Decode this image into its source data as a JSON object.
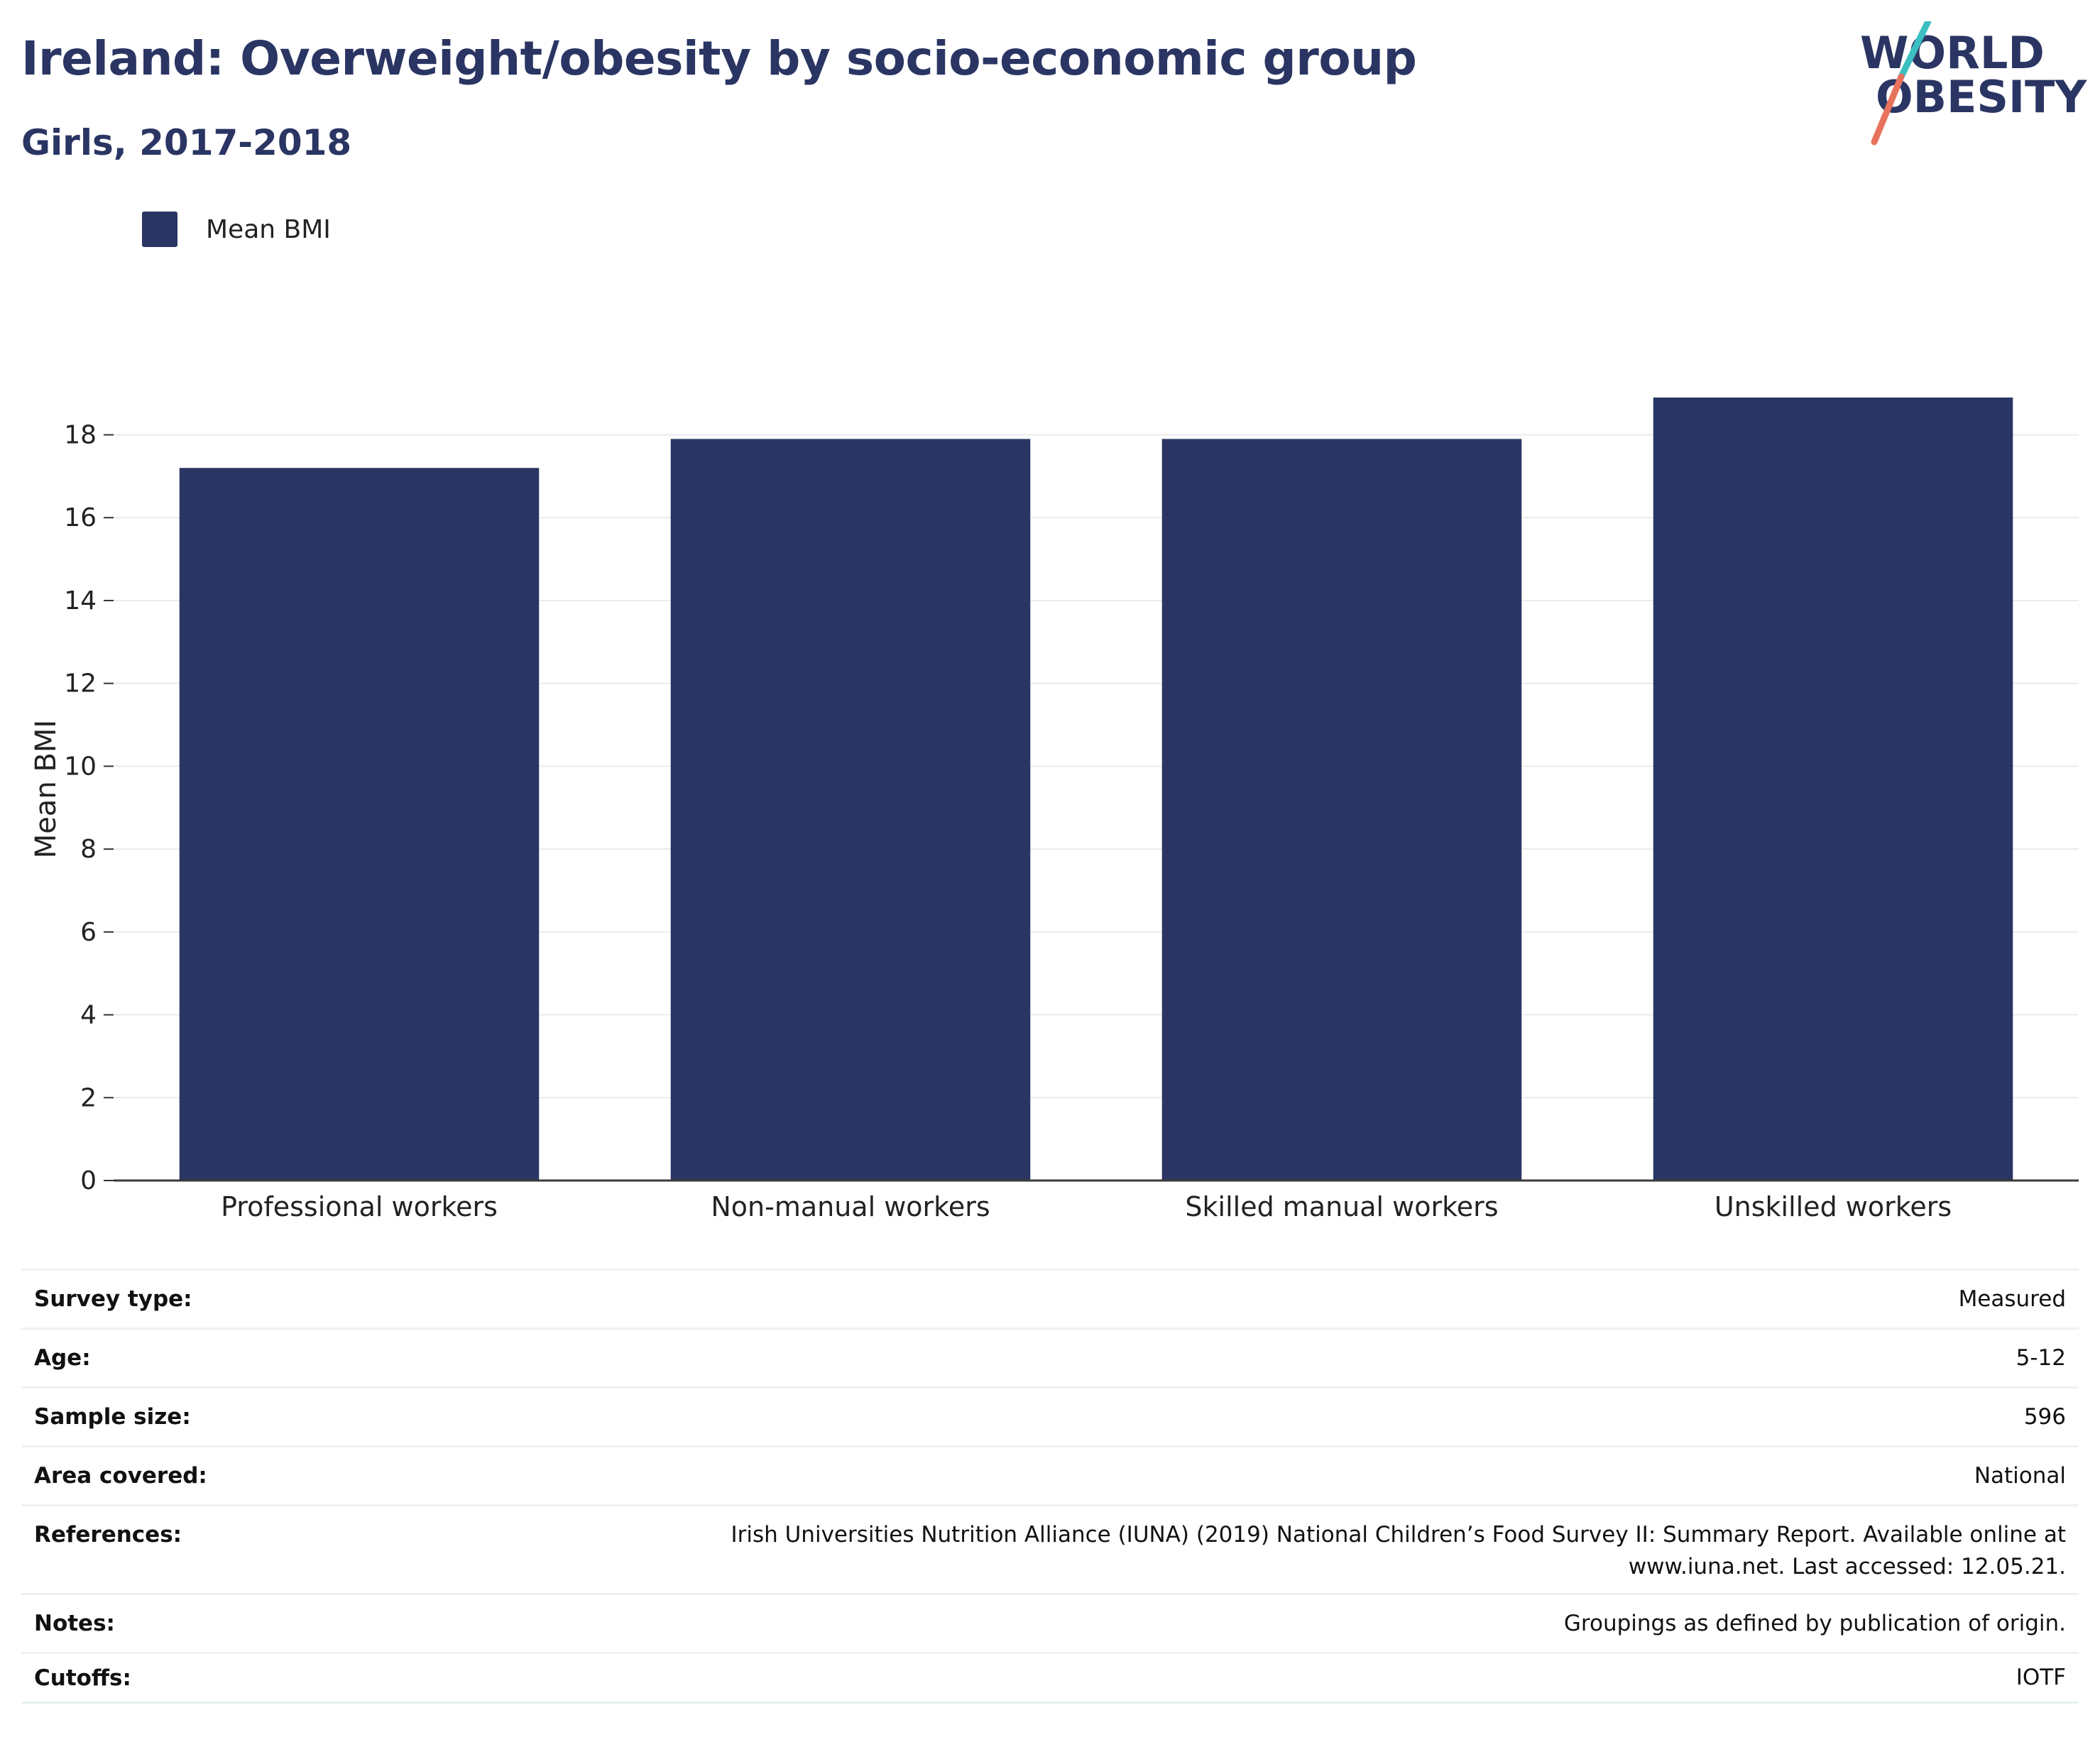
{
  "header": {
    "title": "Ireland: Overweight/obesity by socio-economic group",
    "subtitle": "Girls, 2017-2018"
  },
  "logo": {
    "line1": "WORLD",
    "line2": "OBESITY",
    "colors": {
      "text": "#2a3563",
      "slash_teal": "#3bbfc0",
      "slash_coral": "#e8735d"
    }
  },
  "legend": {
    "items": [
      {
        "label": "Mean BMI",
        "color": "#2a3563"
      }
    ]
  },
  "chart_data": {
    "type": "bar",
    "categories": [
      "Professional workers",
      "Non-manual workers",
      "Skilled manual workers",
      "Unskilled workers"
    ],
    "series": [
      {
        "name": "Mean BMI",
        "values": [
          17.2,
          17.9,
          17.9,
          18.9
        ],
        "color": "#2a3563"
      }
    ],
    "ylabel": "Mean BMI",
    "xlabel": "",
    "ylim": [
      0,
      18.9
    ],
    "yticks": [
      0,
      2,
      4,
      6,
      8,
      10,
      12,
      14,
      16,
      18
    ],
    "grid": true,
    "legend_position": "top-left"
  },
  "info": [
    {
      "key": "Survey type:",
      "value": "Measured"
    },
    {
      "key": "Age:",
      "value": "5-12"
    },
    {
      "key": "Sample size:",
      "value": "596"
    },
    {
      "key": "Area covered:",
      "value": "National"
    },
    {
      "key": "References:",
      "value": "Irish Universities Nutrition Alliance (IUNA) (2019) National Children’s Food Survey II: Summary Report. Available online at",
      "value2": "www.iuna.net. Last accessed: 12.05.21."
    },
    {
      "key": "Notes:",
      "value": "Groupings as defined by publication of origin."
    },
    {
      "key": "Cutoffs:",
      "value": "IOTF"
    }
  ]
}
